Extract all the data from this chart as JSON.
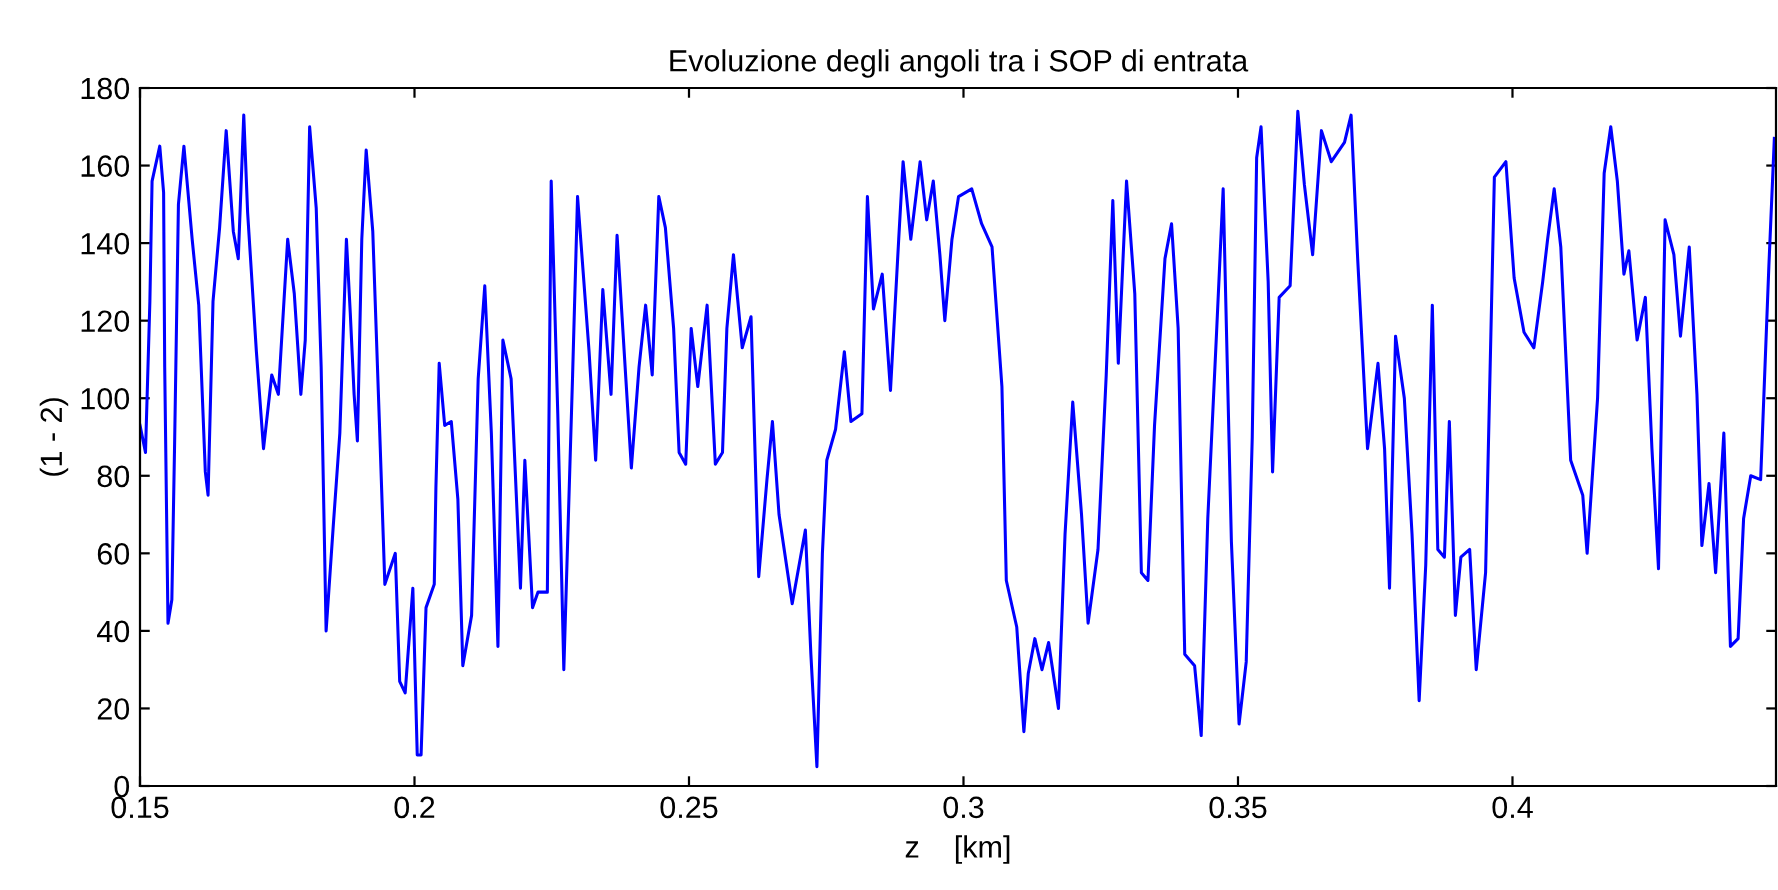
{
  "chart_data": {
    "type": "line",
    "title": "Evoluzione degli angoli tra i SOP di entrata",
    "xlabel": "z    [km]",
    "ylabel": "(1 - 2)",
    "xlim": [
      0.15,
      0.448
    ],
    "ylim": [
      0,
      180
    ],
    "xticks": [
      0.15,
      0.2,
      0.25,
      0.3,
      0.35,
      0.4
    ],
    "yticks": [
      0,
      20,
      40,
      60,
      80,
      100,
      120,
      140,
      160,
      180
    ],
    "grid": false,
    "legend": false,
    "marker": "none",
    "line_style": "solid",
    "series": [
      {
        "color": "#0000ff",
        "x": [
          0.15,
          0.151,
          0.1518,
          0.1522,
          0.1536,
          0.1543,
          0.1545,
          0.1551,
          0.1558,
          0.1563,
          0.157,
          0.158,
          0.1595,
          0.1607,
          0.1619,
          0.1624,
          0.1633,
          0.1645,
          0.1657,
          0.167,
          0.1679,
          0.1689,
          0.1696,
          0.1712,
          0.1725,
          0.174,
          0.1752,
          0.1769,
          0.1781,
          0.1788,
          0.1793,
          0.1801,
          0.1809,
          0.1821,
          0.183,
          0.1839,
          0.1852,
          0.1864,
          0.1876,
          0.1883,
          0.189,
          0.1896,
          0.1904,
          0.1912,
          0.1924,
          0.1936,
          0.1946,
          0.1965,
          0.1973,
          0.1983,
          0.1997,
          0.2005,
          0.2012,
          0.2021,
          0.2036,
          0.2039,
          0.2045,
          0.2055,
          0.2067,
          0.2079,
          0.2088,
          0.2104,
          0.2116,
          0.2128,
          0.214,
          0.2152,
          0.2161,
          0.2176,
          0.2193,
          0.2201,
          0.2215,
          0.2225,
          0.2242,
          0.2249,
          0.2261,
          0.2272,
          0.2288,
          0.2297,
          0.2318,
          0.233,
          0.2343,
          0.2358,
          0.2369,
          0.2385,
          0.2395,
          0.2409,
          0.2421,
          0.2433,
          0.2445,
          0.2457,
          0.2472,
          0.2482,
          0.2494,
          0.2504,
          0.2516,
          0.2533,
          0.2548,
          0.2561,
          0.2569,
          0.2581,
          0.2597,
          0.2613,
          0.2627,
          0.2642,
          0.2652,
          0.2664,
          0.2688,
          0.2712,
          0.2722,
          0.2733,
          0.2743,
          0.2751,
          0.2767,
          0.2783,
          0.2795,
          0.2815,
          0.2825,
          0.2836,
          0.2852,
          0.2867,
          0.2882,
          0.289,
          0.2904,
          0.2921,
          0.2933,
          0.2945,
          0.2957,
          0.2966,
          0.2979,
          0.2991,
          0.3015,
          0.3033,
          0.3052,
          0.307,
          0.3078,
          0.3097,
          0.311,
          0.3118,
          0.313,
          0.3143,
          0.3155,
          0.3173,
          0.3185,
          0.3199,
          0.3215,
          0.3227,
          0.3245,
          0.326,
          0.3272,
          0.3282,
          0.3297,
          0.3312,
          0.3324,
          0.3336,
          0.3348,
          0.3367,
          0.3379,
          0.3391,
          0.3403,
          0.3421,
          0.3433,
          0.3445,
          0.3461,
          0.3473,
          0.3488,
          0.3502,
          0.3515,
          0.3526,
          0.3534,
          0.3542,
          0.3555,
          0.3563,
          0.3575,
          0.3595,
          0.3609,
          0.3621,
          0.3636,
          0.3652,
          0.367,
          0.3694,
          0.3706,
          0.3718,
          0.3736,
          0.3755,
          0.3767,
          0.3776,
          0.3787,
          0.3803,
          0.3817,
          0.383,
          0.3842,
          0.3854,
          0.3864,
          0.3876,
          0.3885,
          0.3896,
          0.3906,
          0.3922,
          0.3934,
          0.3951,
          0.3967,
          0.3988,
          0.4003,
          0.4021,
          0.4039,
          0.4055,
          0.4064,
          0.4076,
          0.4088,
          0.4106,
          0.4128,
          0.4136,
          0.4155,
          0.4167,
          0.4179,
          0.4191,
          0.4203,
          0.4212,
          0.4227,
          0.4242,
          0.4254,
          0.4266,
          0.4278,
          0.4294,
          0.4306,
          0.4322,
          0.4336,
          0.4345,
          0.4358,
          0.437,
          0.4385,
          0.4397,
          0.4411,
          0.4421,
          0.4434,
          0.4452,
          0.4467,
          0.4477
        ],
        "values": [
          93,
          86,
          125,
          156,
          165,
          153,
          108,
          42,
          48,
          88,
          150,
          165,
          141,
          124,
          81,
          75,
          125,
          144,
          169,
          143,
          136,
          173,
          148,
          112,
          87,
          106,
          101,
          141,
          127,
          112,
          101,
          115,
          170,
          149,
          108,
          40,
          67,
          91,
          141,
          122,
          101,
          89,
          141,
          164,
          143,
          94,
          52,
          60,
          27,
          24,
          51,
          8,
          8,
          46,
          52,
          77,
          109,
          93,
          94,
          74,
          31,
          44,
          105,
          129,
          91,
          36,
          115,
          105,
          51,
          84,
          46,
          50,
          50,
          156,
          96,
          30,
          106,
          152,
          112,
          84,
          128,
          101,
          142,
          105,
          82,
          108,
          124,
          106,
          152,
          144,
          118,
          86,
          83,
          118,
          103,
          124,
          83,
          86,
          118,
          137,
          113,
          121,
          54,
          79,
          94,
          70,
          47,
          66,
          34,
          5,
          60,
          84,
          92,
          112,
          94,
          96,
          152,
          123,
          132,
          102,
          141,
          161,
          141,
          161,
          146,
          156,
          137,
          120,
          141,
          152,
          154,
          145,
          139,
          103,
          53,
          41,
          14,
          29,
          38,
          30,
          37,
          20,
          65,
          99,
          70,
          42,
          61,
          106,
          151,
          109,
          156,
          127,
          55,
          53,
          93,
          136,
          145,
          118,
          34,
          31,
          13,
          69,
          117,
          154,
          63,
          16,
          32,
          90,
          162,
          170,
          130,
          81,
          126,
          129,
          174,
          155,
          137,
          169,
          161,
          166,
          173,
          136,
          87,
          109,
          87,
          51,
          116,
          100,
          65,
          22,
          57,
          124,
          61,
          59,
          94,
          44,
          59,
          61,
          30,
          55,
          157,
          161,
          131,
          117,
          113,
          130,
          141,
          154,
          139,
          84,
          75,
          60,
          100,
          158,
          170,
          156,
          132,
          138,
          115,
          126,
          87,
          56,
          146,
          137,
          116,
          139,
          101,
          62,
          78,
          55,
          91,
          36,
          38,
          69,
          80,
          79,
          134,
          167
        ]
      }
    ]
  }
}
